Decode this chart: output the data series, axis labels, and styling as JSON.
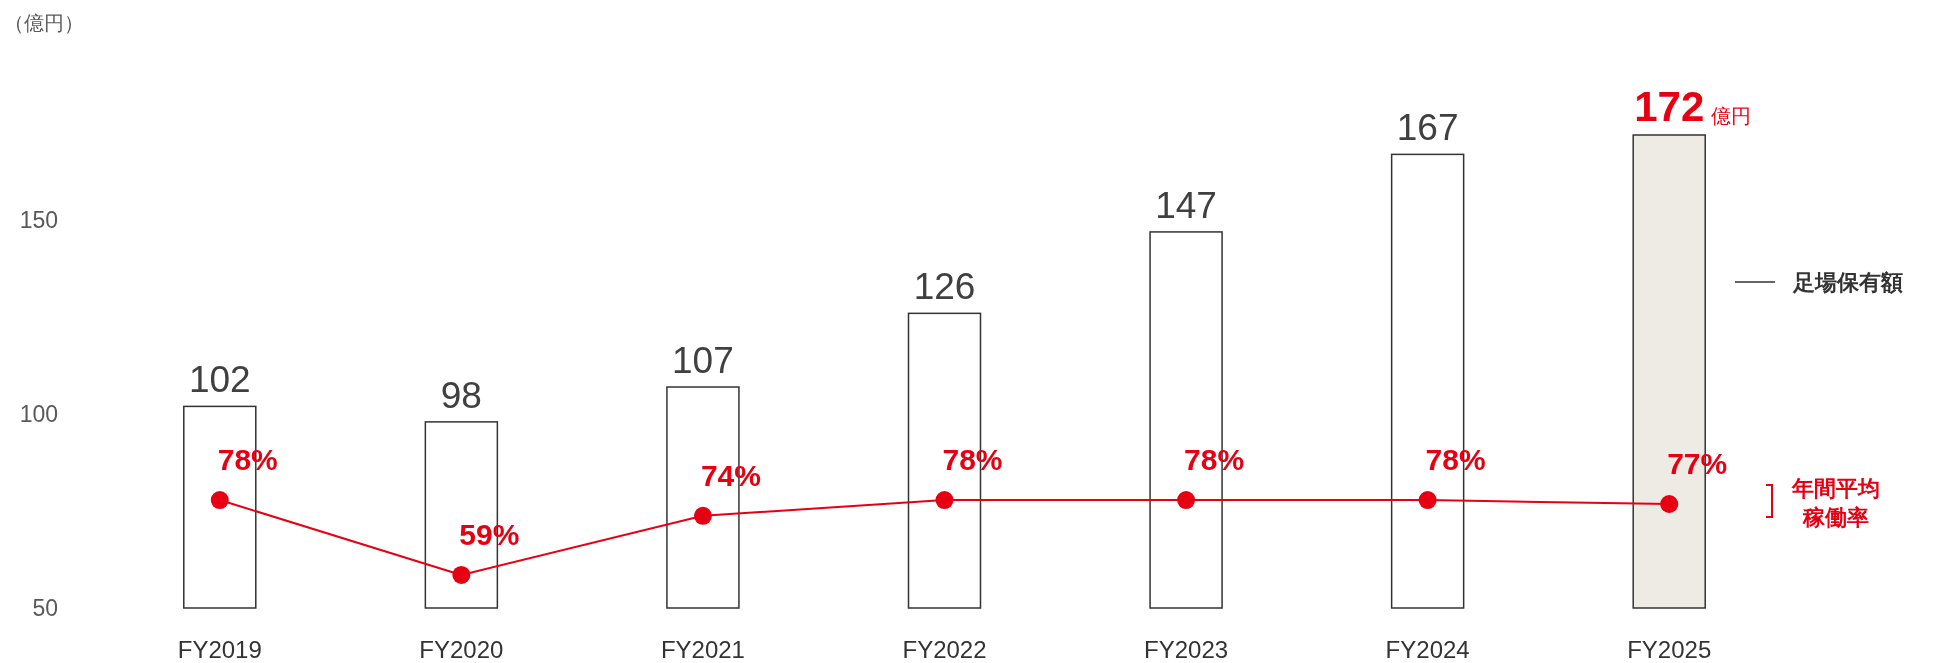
{
  "chart_data": {
    "type": "bar",
    "ylim": [
      50,
      172
    ],
    "categories": [
      "FY2019",
      "FY2020",
      "FY2021",
      "FY2022",
      "FY2023",
      "FY2024",
      "FY2025"
    ],
    "yticks": [
      50,
      100,
      150
    ],
    "grid": false,
    "legend": "right",
    "data_labels": true,
    "series": [
      {
        "name": "足場保有額",
        "color": "#333333",
        "colors": [
          "#ffffff",
          "#ffffff",
          "#ffffff",
          "#ffffff",
          "#ffffff",
          "#ffffff",
          "#eeebe4"
        ],
        "values": [
          102,
          98,
          107,
          126,
          147,
          167,
          172
        ]
      },
      {
        "name": "年間平均稼働率",
        "type": "line",
        "axis": "y2",
        "color": "#e60012",
        "marker": "circle",
        "values": [
          78,
          59,
          74,
          78,
          78,
          78,
          77
        ],
        "value_labels": [
          "78%",
          "59%",
          "74%",
          "78%",
          "78%",
          "78%",
          "77%"
        ]
      }
    ],
    "annotations": [
      "（億円）",
      {
        "text": "億円",
        "x": "FY2025",
        "y": 172
      }
    ]
  }
}
